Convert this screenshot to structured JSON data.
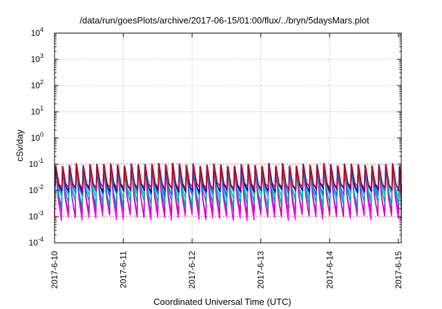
{
  "chart_data": {
    "type": "line",
    "title": "/data/run/goesPlots/archive/2017-06-15/01:00/flux/../bryn/5daysMars.plot",
    "xlabel": "Coordinated Universal Time (UTC)",
    "ylabel": "cSv/day",
    "y_scale": "log",
    "ylim": [
      0.0001,
      10000
    ],
    "xlim": [
      "2017-06-10T00:00",
      "2017-06-15T01:00"
    ],
    "grid": true,
    "x_ticks": [
      "2017-6-10",
      "2017-6-11",
      "2017-6-12",
      "2017-6-13",
      "2017-6-14",
      "2017-6-15"
    ],
    "y_ticks": [
      {
        "base": "10",
        "exp": "-4"
      },
      {
        "base": "10",
        "exp": "-3"
      },
      {
        "base": "10",
        "exp": "-2"
      },
      {
        "base": "10",
        "exp": "-1"
      },
      {
        "base": "10",
        "exp": "0"
      },
      {
        "base": "10",
        "exp": "1"
      },
      {
        "base": "10",
        "exp": "2"
      },
      {
        "base": "10",
        "exp": "3"
      },
      {
        "base": "10",
        "exp": "4"
      }
    ],
    "reference_lines": [
      0.1,
      0.001
    ],
    "cycle_period_hours": 2.4,
    "cycle_peak_range": [
      0.08,
      0.11
    ],
    "series": [
      {
        "color": "#ff00ff",
        "trough_range": [
          0.0007,
          0.0012
        ]
      },
      {
        "color": "#cc00cc",
        "trough_range": [
          0.0009,
          0.0016
        ]
      },
      {
        "color": "#00a0a0",
        "trough_range": [
          0.002,
          0.004
        ]
      },
      {
        "color": "#00c8c8",
        "trough_range": [
          0.004,
          0.007
        ]
      },
      {
        "color": "#2060ff",
        "trough_range": [
          0.006,
          0.01
        ]
      },
      {
        "color": "#0000cc",
        "trough_range": [
          0.008,
          0.012
        ]
      },
      {
        "color": "#cc0000",
        "trough_range": [
          0.01,
          0.014
        ]
      }
    ]
  }
}
